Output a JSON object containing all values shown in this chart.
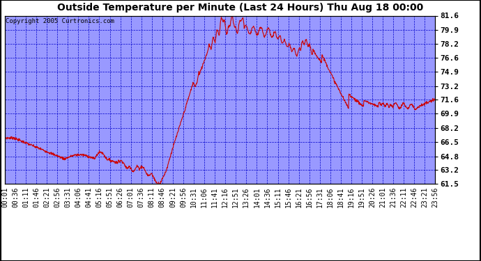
{
  "title": "Outside Temperature per Minute (Last 24 Hours) Thu Aug 18 00:00",
  "copyright": "Copyright 2005 Curtronics.com",
  "plot_bg_color": "#9999ff",
  "line_color": "#cc0000",
  "grid_color": "#0000cc",
  "ylim": [
    61.5,
    81.6
  ],
  "yticks": [
    61.5,
    63.2,
    64.8,
    66.5,
    68.2,
    69.9,
    71.6,
    73.2,
    74.9,
    76.6,
    78.2,
    79.9,
    81.6
  ],
  "x_labels": [
    "00:01",
    "00:36",
    "01:11",
    "01:46",
    "02:21",
    "02:56",
    "03:31",
    "04:06",
    "04:41",
    "05:16",
    "05:51",
    "06:26",
    "07:01",
    "07:36",
    "08:11",
    "08:46",
    "09:21",
    "09:56",
    "10:31",
    "11:06",
    "11:41",
    "12:16",
    "12:51",
    "13:26",
    "14:01",
    "14:36",
    "15:11",
    "15:46",
    "16:21",
    "16:56",
    "17:31",
    "18:06",
    "18:41",
    "19:16",
    "19:51",
    "20:26",
    "21:01",
    "21:36",
    "22:11",
    "22:46",
    "23:21",
    "23:56"
  ],
  "title_fontsize": 10,
  "tick_fontsize": 7,
  "ytick_fontsize": 8,
  "copyright_fontsize": 6.5
}
